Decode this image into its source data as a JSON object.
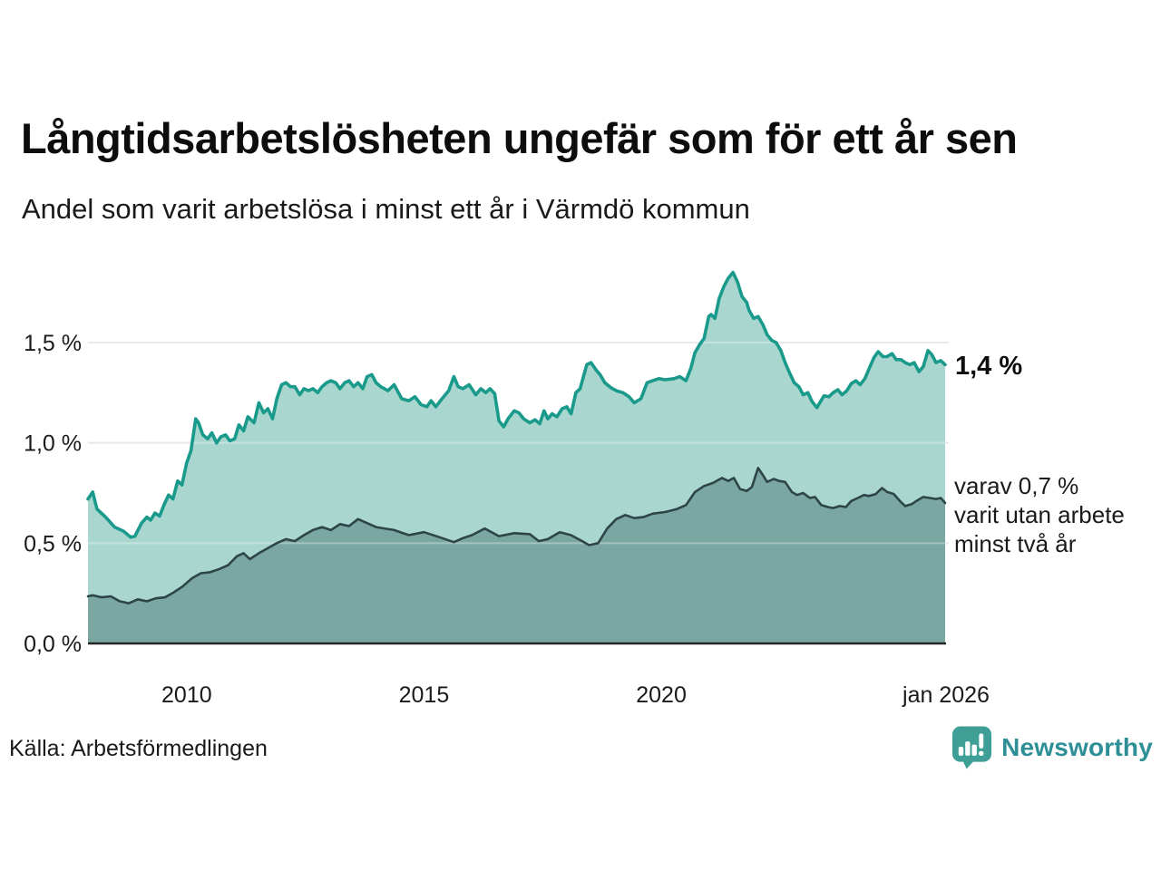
{
  "chart_data": {
    "type": "area",
    "title": "Långtidsarbetslösheten ungefär som för ett år sen",
    "subtitle": "Andel som varit arbetslösa i minst ett år i Värmdö kommun",
    "source": "Källa: Arbetsförmedlingen",
    "brand": "Newsworthy",
    "xlim": [
      2007.92,
      2026.0
    ],
    "ylim": [
      0,
      1.86
    ],
    "grid": "horizontal-only",
    "legend_position": "none",
    "x_ticks": [
      {
        "label": "2010",
        "x": 2010
      },
      {
        "label": "2015",
        "x": 2015
      },
      {
        "label": "2020",
        "x": 2020
      },
      {
        "label": "jan 2026",
        "x": 2026
      }
    ],
    "y_ticks": [
      {
        "label": "1,5 %",
        "value": 1.5
      },
      {
        "label": "1,0 %",
        "value": 1.0
      },
      {
        "label": "0,5 %",
        "value": 0.5
      },
      {
        "label": "0,0 %",
        "value": 0.0
      }
    ],
    "annotations": {
      "end_label": "1,4 %",
      "secondary": [
        "varav 0,7 %",
        "varit utan arbete",
        "minst två år"
      ]
    },
    "series": [
      {
        "label": "Andel som varit arbetslösa i minst ett år",
        "end_value": 1.4,
        "points": [
          [
            2007.92,
            0.72
          ],
          [
            2008.02,
            0.755
          ],
          [
            2008.11,
            0.67
          ],
          [
            2008.29,
            0.63
          ],
          [
            2008.48,
            0.58
          ],
          [
            2008.67,
            0.56
          ],
          [
            2008.82,
            0.53
          ],
          [
            2008.91,
            0.535
          ],
          [
            2009.05,
            0.6
          ],
          [
            2009.16,
            0.63
          ],
          [
            2009.24,
            0.615
          ],
          [
            2009.33,
            0.65
          ],
          [
            2009.43,
            0.635
          ],
          [
            2009.52,
            0.69
          ],
          [
            2009.62,
            0.74
          ],
          [
            2009.71,
            0.72
          ],
          [
            2009.81,
            0.81
          ],
          [
            2009.9,
            0.79
          ],
          [
            2010.0,
            0.9
          ],
          [
            2010.09,
            0.96
          ],
          [
            2010.19,
            1.12
          ],
          [
            2010.25,
            1.1
          ],
          [
            2010.34,
            1.04
          ],
          [
            2010.44,
            1.02
          ],
          [
            2010.53,
            1.05
          ],
          [
            2010.63,
            1.0
          ],
          [
            2010.72,
            1.03
          ],
          [
            2010.82,
            1.04
          ],
          [
            2010.91,
            1.01
          ],
          [
            2011.01,
            1.02
          ],
          [
            2011.1,
            1.09
          ],
          [
            2011.2,
            1.06
          ],
          [
            2011.29,
            1.13
          ],
          [
            2011.42,
            1.1
          ],
          [
            2011.52,
            1.2
          ],
          [
            2011.62,
            1.15
          ],
          [
            2011.71,
            1.17
          ],
          [
            2011.81,
            1.12
          ],
          [
            2011.9,
            1.22
          ],
          [
            2012.0,
            1.29
          ],
          [
            2012.09,
            1.3
          ],
          [
            2012.19,
            1.28
          ],
          [
            2012.28,
            1.28
          ],
          [
            2012.38,
            1.24
          ],
          [
            2012.47,
            1.27
          ],
          [
            2012.57,
            1.26
          ],
          [
            2012.66,
            1.27
          ],
          [
            2012.76,
            1.25
          ],
          [
            2012.85,
            1.28
          ],
          [
            2012.95,
            1.3
          ],
          [
            2013.04,
            1.31
          ],
          [
            2013.14,
            1.3
          ],
          [
            2013.23,
            1.27
          ],
          [
            2013.33,
            1.3
          ],
          [
            2013.42,
            1.31
          ],
          [
            2013.52,
            1.28
          ],
          [
            2013.61,
            1.3
          ],
          [
            2013.71,
            1.27
          ],
          [
            2013.8,
            1.33
          ],
          [
            2013.9,
            1.34
          ],
          [
            2013.99,
            1.3
          ],
          [
            2014.09,
            1.28
          ],
          [
            2014.24,
            1.26
          ],
          [
            2014.37,
            1.29
          ],
          [
            2014.53,
            1.22
          ],
          [
            2014.68,
            1.21
          ],
          [
            2014.81,
            1.23
          ],
          [
            2014.94,
            1.19
          ],
          [
            2015.06,
            1.18
          ],
          [
            2015.15,
            1.21
          ],
          [
            2015.25,
            1.18
          ],
          [
            2015.38,
            1.22
          ],
          [
            2015.52,
            1.26
          ],
          [
            2015.63,
            1.33
          ],
          [
            2015.72,
            1.28
          ],
          [
            2015.82,
            1.27
          ],
          [
            2015.95,
            1.29
          ],
          [
            2016.09,
            1.24
          ],
          [
            2016.2,
            1.27
          ],
          [
            2016.3,
            1.25
          ],
          [
            2016.39,
            1.27
          ],
          [
            2016.49,
            1.245
          ],
          [
            2016.58,
            1.11
          ],
          [
            2016.68,
            1.08
          ],
          [
            2016.77,
            1.12
          ],
          [
            2016.9,
            1.16
          ],
          [
            2017.0,
            1.15
          ],
          [
            2017.1,
            1.12
          ],
          [
            2017.23,
            1.1
          ],
          [
            2017.34,
            1.115
          ],
          [
            2017.44,
            1.095
          ],
          [
            2017.53,
            1.16
          ],
          [
            2017.61,
            1.12
          ],
          [
            2017.7,
            1.145
          ],
          [
            2017.8,
            1.13
          ],
          [
            2017.91,
            1.17
          ],
          [
            2018.01,
            1.18
          ],
          [
            2018.1,
            1.145
          ],
          [
            2018.2,
            1.25
          ],
          [
            2018.29,
            1.27
          ],
          [
            2018.43,
            1.39
          ],
          [
            2018.52,
            1.4
          ],
          [
            2018.62,
            1.365
          ],
          [
            2018.71,
            1.34
          ],
          [
            2018.81,
            1.3
          ],
          [
            2018.94,
            1.275
          ],
          [
            2019.05,
            1.26
          ],
          [
            2019.19,
            1.25
          ],
          [
            2019.32,
            1.23
          ],
          [
            2019.43,
            1.2
          ],
          [
            2019.57,
            1.22
          ],
          [
            2019.7,
            1.3
          ],
          [
            2019.82,
            1.31
          ],
          [
            2019.95,
            1.32
          ],
          [
            2020.08,
            1.315
          ],
          [
            2020.27,
            1.32
          ],
          [
            2020.39,
            1.33
          ],
          [
            2020.52,
            1.31
          ],
          [
            2020.62,
            1.37
          ],
          [
            2020.71,
            1.45
          ],
          [
            2020.81,
            1.49
          ],
          [
            2020.9,
            1.52
          ],
          [
            2021.0,
            1.63
          ],
          [
            2021.05,
            1.64
          ],
          [
            2021.13,
            1.62
          ],
          [
            2021.22,
            1.72
          ],
          [
            2021.32,
            1.78
          ],
          [
            2021.41,
            1.82
          ],
          [
            2021.51,
            1.85
          ],
          [
            2021.61,
            1.8
          ],
          [
            2021.7,
            1.73
          ],
          [
            2021.8,
            1.7
          ],
          [
            2021.85,
            1.66
          ],
          [
            2021.95,
            1.62
          ],
          [
            2022.04,
            1.63
          ],
          [
            2022.14,
            1.59
          ],
          [
            2022.23,
            1.54
          ],
          [
            2022.33,
            1.51
          ],
          [
            2022.42,
            1.5
          ],
          [
            2022.52,
            1.46
          ],
          [
            2022.61,
            1.4
          ],
          [
            2022.71,
            1.345
          ],
          [
            2022.8,
            1.3
          ],
          [
            2022.9,
            1.28
          ],
          [
            2022.99,
            1.24
          ],
          [
            2023.09,
            1.25
          ],
          [
            2023.18,
            1.205
          ],
          [
            2023.28,
            1.175
          ],
          [
            2023.34,
            1.2
          ],
          [
            2023.43,
            1.235
          ],
          [
            2023.53,
            1.23
          ],
          [
            2023.62,
            1.25
          ],
          [
            2023.72,
            1.265
          ],
          [
            2023.81,
            1.24
          ],
          [
            2023.91,
            1.26
          ],
          [
            2024.0,
            1.295
          ],
          [
            2024.1,
            1.31
          ],
          [
            2024.19,
            1.29
          ],
          [
            2024.29,
            1.32
          ],
          [
            2024.38,
            1.37
          ],
          [
            2024.48,
            1.425
          ],
          [
            2024.57,
            1.455
          ],
          [
            2024.67,
            1.43
          ],
          [
            2024.76,
            1.43
          ],
          [
            2024.86,
            1.445
          ],
          [
            2024.95,
            1.415
          ],
          [
            2025.05,
            1.415
          ],
          [
            2025.14,
            1.4
          ],
          [
            2025.24,
            1.39
          ],
          [
            2025.33,
            1.4
          ],
          [
            2025.43,
            1.355
          ],
          [
            2025.52,
            1.38
          ],
          [
            2025.62,
            1.46
          ],
          [
            2025.7,
            1.44
          ],
          [
            2025.79,
            1.4
          ],
          [
            2025.89,
            1.41
          ],
          [
            2025.98,
            1.39
          ]
        ]
      },
      {
        "label": "varav utan arbete minst två år",
        "end_value": 0.7,
        "points": [
          [
            2007.92,
            0.235
          ],
          [
            2008.02,
            0.24
          ],
          [
            2008.21,
            0.23
          ],
          [
            2008.4,
            0.235
          ],
          [
            2008.59,
            0.21
          ],
          [
            2008.78,
            0.2
          ],
          [
            2008.97,
            0.22
          ],
          [
            2009.16,
            0.21
          ],
          [
            2009.35,
            0.225
          ],
          [
            2009.54,
            0.23
          ],
          [
            2009.73,
            0.255
          ],
          [
            2009.92,
            0.285
          ],
          [
            2010.11,
            0.325
          ],
          [
            2010.3,
            0.35
          ],
          [
            2010.49,
            0.355
          ],
          [
            2010.68,
            0.37
          ],
          [
            2010.87,
            0.39
          ],
          [
            2011.06,
            0.435
          ],
          [
            2011.2,
            0.45
          ],
          [
            2011.33,
            0.42
          ],
          [
            2011.52,
            0.45
          ],
          [
            2011.71,
            0.475
          ],
          [
            2011.9,
            0.5
          ],
          [
            2012.09,
            0.52
          ],
          [
            2012.28,
            0.51
          ],
          [
            2012.47,
            0.54
          ],
          [
            2012.66,
            0.565
          ],
          [
            2012.85,
            0.58
          ],
          [
            2013.04,
            0.565
          ],
          [
            2013.23,
            0.595
          ],
          [
            2013.42,
            0.585
          ],
          [
            2013.61,
            0.62
          ],
          [
            2013.8,
            0.6
          ],
          [
            2013.99,
            0.58
          ],
          [
            2014.37,
            0.565
          ],
          [
            2014.68,
            0.54
          ],
          [
            2015.0,
            0.555
          ],
          [
            2015.32,
            0.53
          ],
          [
            2015.63,
            0.505
          ],
          [
            2015.82,
            0.525
          ],
          [
            2016.01,
            0.54
          ],
          [
            2016.28,
            0.573
          ],
          [
            2016.58,
            0.535
          ],
          [
            2016.9,
            0.55
          ],
          [
            2017.23,
            0.545
          ],
          [
            2017.42,
            0.51
          ],
          [
            2017.61,
            0.52
          ],
          [
            2017.86,
            0.555
          ],
          [
            2018.1,
            0.54
          ],
          [
            2018.37,
            0.505
          ],
          [
            2018.48,
            0.49
          ],
          [
            2018.67,
            0.5
          ],
          [
            2018.86,
            0.573
          ],
          [
            2019.05,
            0.62
          ],
          [
            2019.24,
            0.64
          ],
          [
            2019.43,
            0.625
          ],
          [
            2019.62,
            0.63
          ],
          [
            2019.82,
            0.647
          ],
          [
            2020.08,
            0.655
          ],
          [
            2020.33,
            0.67
          ],
          [
            2020.52,
            0.69
          ],
          [
            2020.71,
            0.755
          ],
          [
            2020.9,
            0.785
          ],
          [
            2021.09,
            0.8
          ],
          [
            2021.28,
            0.825
          ],
          [
            2021.41,
            0.81
          ],
          [
            2021.53,
            0.825
          ],
          [
            2021.66,
            0.77
          ],
          [
            2021.8,
            0.76
          ],
          [
            2021.91,
            0.78
          ],
          [
            2022.04,
            0.875
          ],
          [
            2022.14,
            0.84
          ],
          [
            2022.23,
            0.805
          ],
          [
            2022.37,
            0.82
          ],
          [
            2022.48,
            0.81
          ],
          [
            2022.61,
            0.805
          ],
          [
            2022.75,
            0.755
          ],
          [
            2022.86,
            0.74
          ],
          [
            2022.99,
            0.75
          ],
          [
            2023.13,
            0.725
          ],
          [
            2023.24,
            0.73
          ],
          [
            2023.37,
            0.69
          ],
          [
            2023.51,
            0.68
          ],
          [
            2023.62,
            0.675
          ],
          [
            2023.76,
            0.685
          ],
          [
            2023.89,
            0.68
          ],
          [
            2024.0,
            0.71
          ],
          [
            2024.14,
            0.725
          ],
          [
            2024.27,
            0.74
          ],
          [
            2024.38,
            0.735
          ],
          [
            2024.52,
            0.745
          ],
          [
            2024.65,
            0.775
          ],
          [
            2024.76,
            0.755
          ],
          [
            2024.9,
            0.745
          ],
          [
            2025.03,
            0.71
          ],
          [
            2025.14,
            0.685
          ],
          [
            2025.28,
            0.695
          ],
          [
            2025.41,
            0.715
          ],
          [
            2025.52,
            0.73
          ],
          [
            2025.66,
            0.725
          ],
          [
            2025.79,
            0.72
          ],
          [
            2025.89,
            0.725
          ],
          [
            2025.98,
            0.7
          ]
        ]
      }
    ],
    "colors": {
      "upper_line": "#1a9a8b",
      "upper_fill": "#a9d6cf",
      "lower_line": "#2e4547",
      "lower_fill": "#7aa7a1",
      "gridline": "#dfdfe1",
      "axis_line": "#262626",
      "brand_teal": "#3f9e95",
      "brand_text": "#2e9096"
    }
  }
}
